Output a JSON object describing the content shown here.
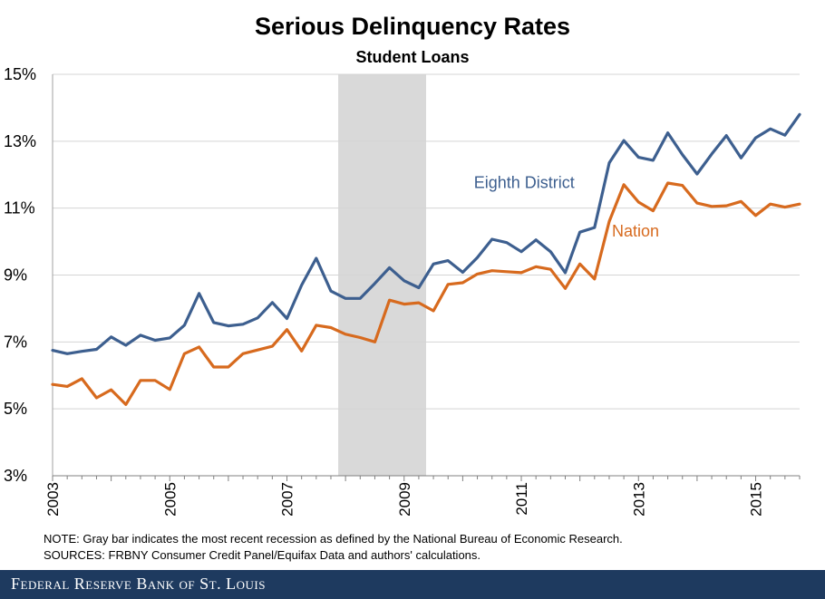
{
  "chart_data": {
    "type": "line",
    "title": "Serious Delinquency Rates",
    "subtitle": "Student Loans",
    "xlabel": "",
    "ylabel": "",
    "ylim": [
      3,
      15
    ],
    "yticks": [
      "3%",
      "5%",
      "7%",
      "9%",
      "11%",
      "13%",
      "15%"
    ],
    "ytick_values": [
      3,
      5,
      7,
      9,
      11,
      13,
      15
    ],
    "xlim": [
      2003,
      2015.75
    ],
    "xticks": [
      "2003",
      "2005",
      "2007",
      "2009",
      "2011",
      "2013",
      "2015"
    ],
    "xtick_values": [
      2003,
      2005,
      2007,
      2009,
      2011,
      2013,
      2015
    ],
    "grid": true,
    "recession": {
      "start": 2007.875,
      "end": 2009.375,
      "color": "#d9d9d9"
    },
    "x": [
      2003.0,
      2003.25,
      2003.5,
      2003.75,
      2004.0,
      2004.25,
      2004.5,
      2004.75,
      2005.0,
      2005.25,
      2005.5,
      2005.75,
      2006.0,
      2006.25,
      2006.5,
      2006.75,
      2007.0,
      2007.25,
      2007.5,
      2007.75,
      2008.0,
      2008.25,
      2008.5,
      2008.75,
      2009.0,
      2009.25,
      2009.5,
      2009.75,
      2010.0,
      2010.25,
      2010.5,
      2010.75,
      2011.0,
      2011.25,
      2011.5,
      2011.75,
      2012.0,
      2012.25,
      2012.5,
      2012.75,
      2013.0,
      2013.25,
      2013.5,
      2013.75,
      2014.0,
      2014.25,
      2014.5,
      2014.75,
      2015.0,
      2015.25,
      2015.5,
      2015.75
    ],
    "series": [
      {
        "name": "Eighth District",
        "color": "#3d5f8f",
        "values": [
          6.75,
          6.65,
          6.72,
          6.78,
          7.15,
          6.9,
          7.2,
          7.05,
          7.12,
          7.5,
          8.45,
          7.58,
          7.48,
          7.53,
          7.72,
          8.18,
          7.7,
          8.7,
          9.5,
          8.52,
          8.3,
          8.3,
          8.75,
          9.22,
          8.83,
          8.62,
          9.33,
          9.43,
          9.08,
          9.52,
          10.07,
          9.97,
          9.7,
          10.05,
          9.7,
          9.07,
          10.28,
          10.42,
          12.35,
          13.02,
          12.52,
          12.43,
          13.25,
          12.6,
          12.02,
          12.62,
          13.17,
          12.5,
          13.1,
          13.37,
          13.18,
          13.8
        ]
      },
      {
        "name": "Nation",
        "color": "#d76a1e",
        "values": [
          5.73,
          5.67,
          5.9,
          5.33,
          5.57,
          5.13,
          5.85,
          5.85,
          5.58,
          6.65,
          6.85,
          6.25,
          6.25,
          6.65,
          6.76,
          6.87,
          7.37,
          6.73,
          7.5,
          7.43,
          7.23,
          7.13,
          7.0,
          8.25,
          8.13,
          8.17,
          7.93,
          8.72,
          8.77,
          9.03,
          9.13,
          9.1,
          9.07,
          9.25,
          9.17,
          8.6,
          9.33,
          8.88,
          10.6,
          11.7,
          11.18,
          10.92,
          11.75,
          11.68,
          11.15,
          11.05,
          11.07,
          11.2,
          10.78,
          11.12,
          11.03,
          11.12
        ]
      }
    ],
    "annotations": [
      {
        "text": "Eighth District",
        "series": "Eighth District"
      },
      {
        "text": "Nation",
        "series": "Nation"
      }
    ]
  },
  "notes": {
    "note": "NOTE: Gray bar indicates the most recent recession as defined by the National Bureau of Economic Research.",
    "sources": "SOURCES: FRBNY Consumer Credit Panel/Equifax Data and authors' calculations."
  },
  "footer": {
    "text": "Federal Reserve Bank of St. Louis",
    "color": "#1e3a5f"
  }
}
